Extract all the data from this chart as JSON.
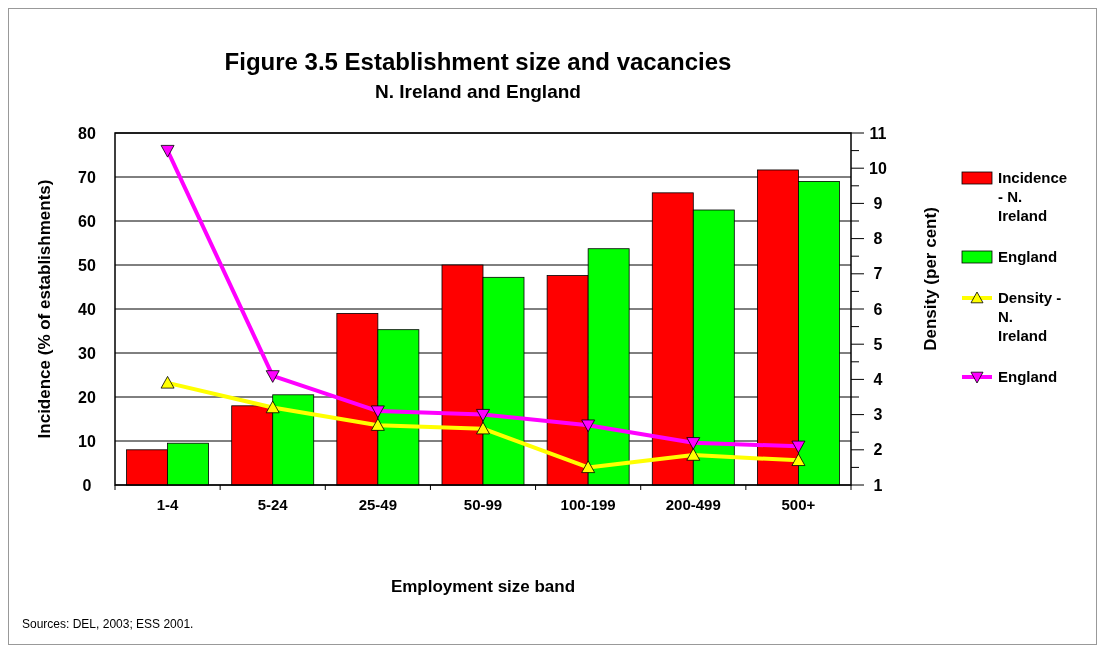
{
  "chart_data": {
    "type": "bar",
    "title": "Figure 3.5 Establishment size and vacancies",
    "subtitle": "N. Ireland and England",
    "xlabel": "Employment size band",
    "ylabel": "Incidence (% of establishments)",
    "y2label": "Density (per cent)",
    "categories": [
      "1-4",
      "5-24",
      "25-49",
      "50-99",
      "100-199",
      "200-499",
      "500+"
    ],
    "series": [
      {
        "name": "Incidence - N. Ireland",
        "color": "#ff0000",
        "values": [
          8,
          18,
          39,
          50,
          47.6,
          66.4,
          71.6
        ]
      },
      {
        "name": "England",
        "color": "#00ff00",
        "values": [
          9.5,
          20.5,
          35.3,
          47.2,
          53.7,
          62.5,
          69
        ]
      },
      {
        "name": "Density - N. Ireland",
        "type": "line",
        "axis": "y2",
        "color": "#ffff00",
        "marker": "triangle",
        "values": [
          3.9,
          3.2,
          2.7,
          2.6,
          1.5,
          1.85,
          1.7
        ]
      },
      {
        "name": "England",
        "type": "line",
        "axis": "y2",
        "color": "#ff00ff",
        "marker": "triangle-down",
        "values": [
          10.5,
          4.1,
          3.1,
          3.0,
          2.7,
          2.2,
          2.1
        ]
      }
    ],
    "ylim": [
      0,
      80
    ],
    "yticks": [
      0,
      10,
      20,
      30,
      40,
      50,
      60,
      70,
      80
    ],
    "y2lim": [
      1,
      11
    ],
    "y2ticks": [
      1,
      {
        "value": 1.5,
        "label": null
      },
      2,
      {
        "value": 2.5,
        "label": null
      },
      3,
      {
        "value": 3.5,
        "label": null
      },
      4,
      {
        "value": 4.5,
        "label": null
      },
      5,
      {
        "value": 5.5,
        "label": null
      },
      6,
      {
        "value": 6.5,
        "label": null
      },
      7,
      {
        "value": 7.5,
        "label": null
      },
      8,
      {
        "value": 8.5,
        "label": null
      },
      9,
      {
        "value": 9.5,
        "label": null
      },
      10,
      {
        "value": 10.5,
        "label": null
      },
      11
    ],
    "grid": "y",
    "legend": "right",
    "annotations": [
      "Sources: DEL, 2003; ESS 2001."
    ]
  }
}
